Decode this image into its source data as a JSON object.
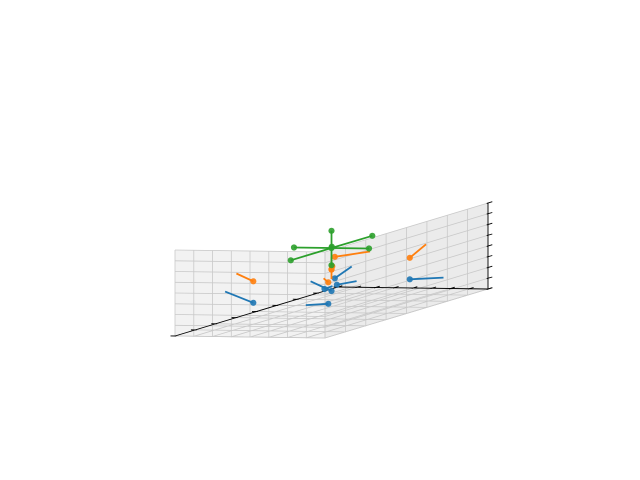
{
  "chart_data": {
    "type": "scatter",
    "subtype": "3d-quiver",
    "title": "",
    "xlabel": "",
    "ylabel": "",
    "zlabel": "",
    "tick_labels_visible": false,
    "grid": true,
    "legend": "none",
    "colors": {
      "series1": "#1f77b4",
      "series2": "#ff7f0e",
      "series3": "#2ca02c",
      "pane_left": "#f2f2f2",
      "pane_back": "#ebebeb",
      "pane_floor": "#f5f5f5"
    },
    "series": [
      {
        "color_key": "series1",
        "points": [
          {
            "p": [
              0,
              0,
              0
            ],
            "v": [
              -0.55,
              0,
              0.25
            ]
          },
          {
            "p": [
              2,
              0,
              0
            ],
            "v": [
              0,
              -0.9,
              0.1
            ]
          },
          {
            "p": [
              0,
              2,
              0
            ],
            "v": [
              0,
              0.75,
              0.5
            ]
          },
          {
            "p": [
              2,
              2,
              0
            ],
            "v": [
              0.6,
              0.2,
              0.2
            ]
          },
          {
            "p": [
              1,
              1,
              0
            ],
            "v": [
              -0.1,
              0.45,
              0.5
            ]
          },
          {
            "p": [
              1.5,
              1.4,
              0
            ],
            "v": [
              0.3,
              -0.2,
              0
            ]
          },
          {
            "p": [
              1.15,
              1.35,
              0
            ],
            "v": [
              0.15,
              -0.05,
              0.05
            ]
          }
        ]
      },
      {
        "color_key": "series2",
        "points": [
          {
            "p": [
              0,
              0,
              1
            ],
            "v": [
              0.3,
              0.45,
              0
            ]
          },
          {
            "p": [
              2,
              0,
              1
            ],
            "v": [
              0.4,
              0,
              0.4
            ]
          },
          {
            "p": [
              0,
              2,
              1
            ],
            "v": [
              0,
              0.45,
              0.35
            ]
          },
          {
            "p": [
              2,
              2,
              1
            ],
            "v": [
              0.45,
              -0.45,
              0
            ]
          },
          {
            "p": [
              1,
              1,
              1
            ],
            "v": [
              0,
              0,
              0.6
            ]
          },
          {
            "p": [
              1,
              1,
              1
            ],
            "v": [
              0,
              0,
              -0.45
            ]
          },
          {
            "p": [
              1.25,
              1.25,
              1
            ],
            "v": [
              0,
              0,
              0
            ]
          }
        ]
      },
      {
        "color_key": "series3",
        "points": [
          {
            "p": [
              1,
              1,
              2
            ],
            "v": [
              0,
              0,
              0
            ]
          },
          {
            "p": [
              0,
              1,
              2
            ],
            "v": [
              1,
              0,
              0
            ]
          },
          {
            "p": [
              2,
              1,
              2
            ],
            "v": [
              -1,
              0,
              0
            ]
          },
          {
            "p": [
              1,
              0,
              2
            ],
            "v": [
              0,
              1,
              0
            ]
          },
          {
            "p": [
              1,
              2,
              2
            ],
            "v": [
              0,
              -1,
              0
            ]
          },
          {
            "p": [
              1,
              1,
              2.8
            ],
            "v": [
              0,
              0,
              -0.8
            ]
          },
          {
            "p": [
              1,
              1,
              1.2
            ],
            "v": [
              0,
              0,
              0.8
            ]
          },
          {
            "p": [
              1.1,
              1.1,
              2
            ],
            "v": [
              0,
              0,
              0
            ]
          }
        ]
      }
    ],
    "axes": {
      "xlim": [
        -1,
        3
      ],
      "ylim": [
        -1,
        3
      ],
      "zlim": [
        -1,
        3
      ],
      "xticks": [
        -1,
        -0.5,
        0,
        0.5,
        1,
        1.5,
        2,
        2.5,
        3
      ],
      "yticks": [
        -1,
        -0.5,
        0,
        0.5,
        1,
        1.5,
        2,
        2.5,
        3
      ],
      "zticks": [
        -1,
        -0.5,
        0,
        0.5,
        1,
        1.5,
        2,
        2.5,
        3
      ]
    }
  }
}
